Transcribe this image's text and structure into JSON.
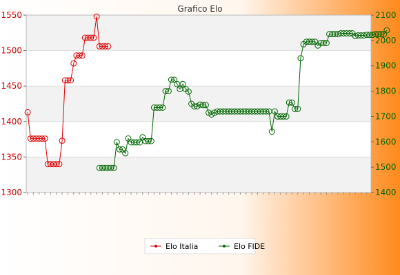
{
  "chart_data": {
    "type": "line",
    "title": "Grafico Elo",
    "colors": {
      "bg_left": "#ffffff",
      "bg_right": "#ff8a1c",
      "band": "#f2f2f2",
      "grid": "#dcdcdc",
      "italia": "#dd0000",
      "fide": "#006600",
      "left_tick": "#cc0000",
      "right_tick": "#006600"
    },
    "y_left": {
      "min": 1300,
      "max": 1550,
      "ticks": [
        1300,
        1350,
        1400,
        1450,
        1500,
        1550
      ]
    },
    "y_right": {
      "min": 1400,
      "max": 2100,
      "ticks": [
        1400,
        1500,
        1600,
        1700,
        1800,
        1900,
        2000,
        2100
      ]
    },
    "grid": true,
    "legend": "bottom-center",
    "n_points": 120,
    "series": [
      {
        "name": "Elo Italia",
        "axis": "left",
        "start": 0,
        "values": [
          1413,
          1376,
          1376,
          1376,
          1376,
          1376,
          1376,
          1340,
          1340,
          1340,
          1340,
          1340,
          1373,
          1458,
          1458,
          1458,
          1482,
          1493,
          1493,
          1493,
          1518,
          1518,
          1518,
          1518,
          1548,
          1506,
          1506,
          1506,
          1506
        ]
      },
      {
        "name": "Elo FIDE",
        "axis": "right",
        "start": 25,
        "values": [
          1497,
          1497,
          1497,
          1497,
          1497,
          1497,
          1599,
          1570,
          1570,
          1555,
          1613,
          1598,
          1598,
          1598,
          1598,
          1618,
          1603,
          1603,
          1603,
          1735,
          1735,
          1735,
          1735,
          1800,
          1800,
          1845,
          1845,
          1828,
          1808,
          1828,
          1808,
          1798,
          1750,
          1740,
          1740,
          1747,
          1745,
          1745,
          1715,
          1708,
          1715,
          1720,
          1720,
          1720,
          1720,
          1720,
          1720,
          1720,
          1720,
          1720,
          1720,
          1720,
          1720,
          1720,
          1720,
          1720,
          1720,
          1720,
          1720,
          1720,
          1640,
          1720,
          1700,
          1700,
          1700,
          1700,
          1755,
          1755,
          1730,
          1730,
          1930,
          1985,
          1995,
          1995,
          1995,
          1995,
          1980,
          1990,
          1990,
          1990,
          2025,
          2025,
          2025,
          2025,
          2028,
          2028,
          2028,
          2028,
          2028,
          2018,
          2020,
          2020,
          2020,
          2022,
          2022,
          2022,
          2025,
          2025,
          2025,
          2025,
          2040
        ]
      }
    ]
  }
}
